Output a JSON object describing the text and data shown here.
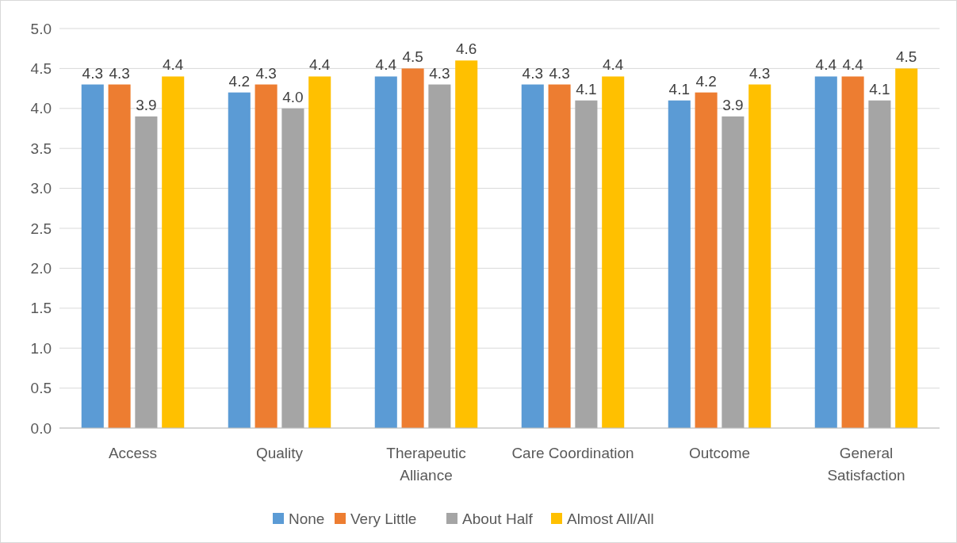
{
  "chart_data": {
    "type": "bar",
    "categories": [
      "Access",
      "Quality",
      "Therapeutic Alliance",
      "Care Coordination",
      "Outcome",
      "General Satisfaction"
    ],
    "series": [
      {
        "name": "None",
        "color": "#5b9bd5",
        "values": [
          4.3,
          4.2,
          4.4,
          4.3,
          4.1,
          4.4
        ],
        "value_labels": [
          "4.3",
          "4.2",
          "4.4",
          "4.3",
          "4.1",
          "4.4"
        ]
      },
      {
        "name": "Very Little",
        "color": "#ed7d31",
        "values": [
          4.3,
          4.3,
          4.5,
          4.3,
          4.2,
          4.4
        ],
        "value_labels": [
          "4.3",
          "4.3",
          "4.5",
          "4.3",
          "4.2",
          "4.4"
        ]
      },
      {
        "name": "About Half",
        "color": "#a5a5a5",
        "values": [
          3.9,
          4.0,
          4.3,
          4.1,
          3.9,
          4.1
        ],
        "value_labels": [
          "3.9",
          "4.0",
          "4.3",
          "4.1",
          "3.9",
          "4.1"
        ]
      },
      {
        "name": "Almost All/All",
        "color": "#ffc000",
        "values": [
          4.4,
          4.4,
          4.6,
          4.4,
          4.3,
          4.5
        ],
        "value_labels": [
          "4.4",
          "4.4",
          "4.6",
          "4.4",
          "4.3",
          "4.5"
        ]
      }
    ],
    "ylim": [
      0,
      5
    ],
    "yticks": [
      {
        "value": 0,
        "label": "0.0"
      },
      {
        "value": 0.5,
        "label": "0.5"
      },
      {
        "value": 1,
        "label": "1.0"
      },
      {
        "value": 1.5,
        "label": "1.5"
      },
      {
        "value": 2,
        "label": "2.0"
      },
      {
        "value": 2.5,
        "label": "2.5"
      },
      {
        "value": 3,
        "label": "3.0"
      },
      {
        "value": 3.5,
        "label": "3.5"
      },
      {
        "value": 4,
        "label": "4.0"
      },
      {
        "value": 4.5,
        "label": "4.5"
      },
      {
        "value": 5,
        "label": "5.0"
      }
    ],
    "grid": "y",
    "legend": "bottom"
  }
}
